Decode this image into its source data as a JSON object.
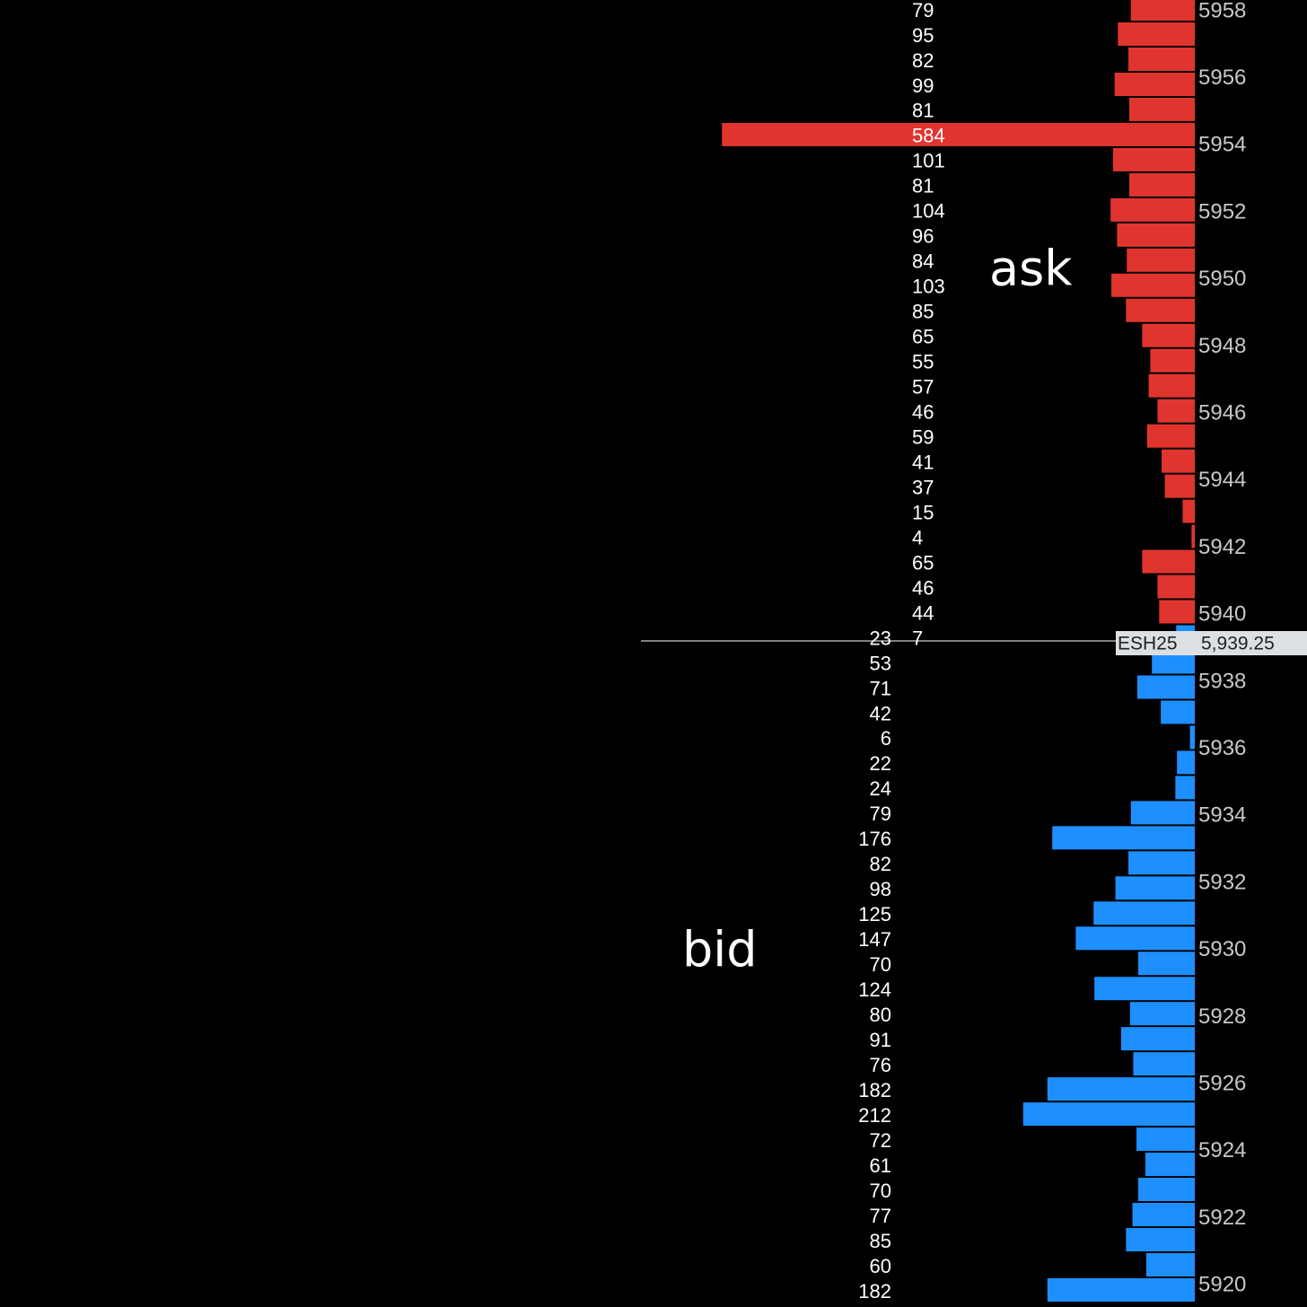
{
  "order_book": {
    "ask": {
      "label": "ask",
      "color": "#e0352f",
      "sizes": [
        79,
        95,
        82,
        99,
        81,
        584,
        101,
        81,
        104,
        96,
        84,
        103,
        85,
        65,
        55,
        57,
        46,
        59,
        41,
        37,
        15,
        4,
        65,
        46,
        44,
        7
      ]
    },
    "bid": {
      "label": "bid",
      "color": "#1e8fff",
      "sizes": [
        23,
        53,
        71,
        42,
        6,
        22,
        24,
        79,
        176,
        82,
        98,
        125,
        147,
        70,
        124,
        80,
        91,
        76,
        182,
        212,
        72,
        61,
        70,
        77,
        85,
        60,
        182
      ]
    },
    "price_axis": {
      "ticks": [
        5958,
        5956,
        5954,
        5952,
        5950,
        5948,
        5946,
        5944,
        5942,
        5940,
        5938,
        5936,
        5934,
        5932,
        5930,
        5928,
        5926,
        5924,
        5922,
        5920
      ]
    },
    "last_price": {
      "symbol": "ESH25",
      "price": "5,939.25"
    }
  }
}
